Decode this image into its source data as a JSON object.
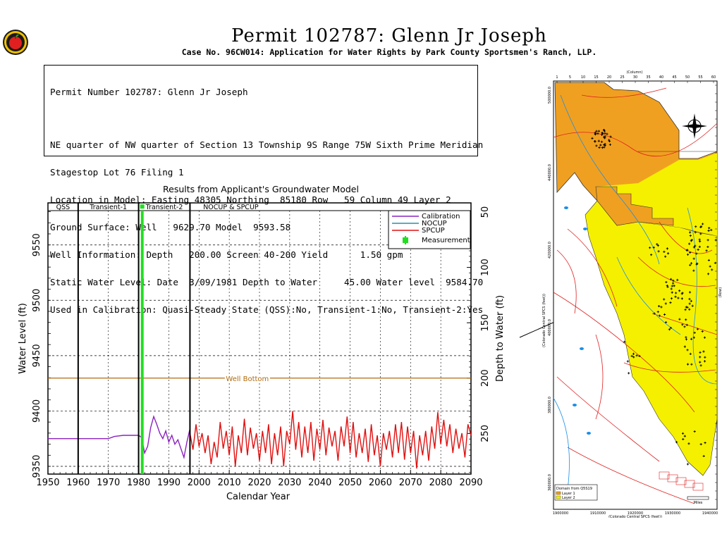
{
  "header": {
    "title": "Permit 102787:   Glenn Jr Joseph",
    "subtitle": "Case No. 96CW014: Application for Water Rights by Park County Sportsmen's Ranch, LLP."
  },
  "info": {
    "lines": [
      "Permit Number 102787: Glenn Jr Joseph",
      "NE quarter of NW quarter of Section 13 Township 9S Range 75W Sixth Prime Meridian",
      "Stagestop Lot 76 Filing 1",
      "Location in Model: Easting 48305 Northing  85180 Row   59 Column 49 Layer 2",
      "Ground Surface: Well   9629.70 Model  9593.58",
      "Well Information: Depth   200.00 Screen 40-200 Yield      1.50 gpm",
      "Static Water Level: Date  3/09/1981 Depth to Water     45.00 Water level  9584.70",
      "Used in Calibration: Quasi-Steady State (QSS):No, Transient-1:No, Transient-2:Yes"
    ]
  },
  "colors": {
    "calibration": "#8b22c0",
    "nocup": "#2a8fa8",
    "spcup": "#e01010",
    "measurement": "#22dd22",
    "well_bottom": "#b06a10",
    "map_orange": "#f0a020",
    "map_yellow": "#f5f000",
    "map_red": "#e02020",
    "map_blue": "#1a8ee8"
  },
  "chart_data": {
    "type": "line",
    "title": "Results from Applicant's Groundwater Model",
    "xlabel": "Calendar Year",
    "ylabel": "Water Level (ft)",
    "y2label": "Depth to Water (ft)",
    "xlim": [
      1950,
      2090
    ],
    "ylim": [
      9343,
      9588
    ],
    "x_ticks": [
      1950,
      1960,
      1970,
      1980,
      1990,
      2000,
      2010,
      2020,
      2030,
      2040,
      2050,
      2060,
      2070,
      2080,
      2090
    ],
    "y_ticks": [
      9350,
      9400,
      9450,
      9500,
      9550
    ],
    "y2_ticks": [
      50,
      100,
      150,
      200,
      250
    ],
    "y2_reference": 9629.7,
    "grid": true,
    "legend_position": "top-right",
    "periods": [
      {
        "label": "QSS",
        "start": 1950,
        "end": 1960
      },
      {
        "label": "Transient-1",
        "start": 1960,
        "end": 1980
      },
      {
        "label": "Transient-2",
        "start": 1980,
        "end": 1997
      },
      {
        "label": "NOCUP  &  SPCUP",
        "start": 1997,
        "end": 2090
      }
    ],
    "period_lines": [
      1960,
      1980,
      1997
    ],
    "well_bottom": {
      "label": "Well Bottom",
      "value": 9429.7
    },
    "measurement": {
      "label": "Measurement",
      "x": 1981.2,
      "y": 9584.7
    },
    "series": [
      {
        "name": "Calibration",
        "points": [
          [
            1950,
            9375
          ],
          [
            1960,
            9375
          ],
          [
            1970,
            9375
          ],
          [
            1972,
            9377
          ],
          [
            1975,
            9378
          ],
          [
            1980,
            9378
          ],
          [
            1981,
            9376
          ],
          [
            1982,
            9362
          ],
          [
            1983,
            9368
          ],
          [
            1984,
            9385
          ],
          [
            1985,
            9395
          ],
          [
            1986,
            9388
          ],
          [
            1987,
            9380
          ],
          [
            1988,
            9375
          ],
          [
            1989,
            9382
          ],
          [
            1990,
            9372
          ],
          [
            1991,
            9378
          ],
          [
            1992,
            9370
          ],
          [
            1993,
            9374
          ],
          [
            1994,
            9366
          ],
          [
            1995,
            9358
          ],
          [
            1996,
            9372
          ],
          [
            1997,
            9384
          ]
        ]
      },
      {
        "name": "NOCUP",
        "points": []
      },
      {
        "name": "SPCUP",
        "points": [
          [
            1997,
            9380
          ],
          [
            1998,
            9365
          ],
          [
            1999,
            9388
          ],
          [
            2000,
            9368
          ],
          [
            2001,
            9380
          ],
          [
            2002,
            9362
          ],
          [
            2003,
            9378
          ],
          [
            2004,
            9352
          ],
          [
            2005,
            9372
          ],
          [
            2006,
            9358
          ],
          [
            2007,
            9390
          ],
          [
            2008,
            9366
          ],
          [
            2009,
            9382
          ],
          [
            2010,
            9360
          ],
          [
            2011,
            9386
          ],
          [
            2012,
            9350
          ],
          [
            2013,
            9378
          ],
          [
            2014,
            9362
          ],
          [
            2015,
            9393
          ],
          [
            2016,
            9360
          ],
          [
            2017,
            9385
          ],
          [
            2018,
            9366
          ],
          [
            2019,
            9380
          ],
          [
            2020,
            9355
          ],
          [
            2021,
            9382
          ],
          [
            2022,
            9362
          ],
          [
            2023,
            9388
          ],
          [
            2024,
            9352
          ],
          [
            2025,
            9380
          ],
          [
            2026,
            9360
          ],
          [
            2027,
            9386
          ],
          [
            2028,
            9350
          ],
          [
            2029,
            9382
          ],
          [
            2030,
            9370
          ],
          [
            2031,
            9400
          ],
          [
            2032,
            9365
          ],
          [
            2033,
            9390
          ],
          [
            2034,
            9358
          ],
          [
            2035,
            9386
          ],
          [
            2036,
            9362
          ],
          [
            2037,
            9390
          ],
          [
            2038,
            9355
          ],
          [
            2039,
            9384
          ],
          [
            2040,
            9365
          ],
          [
            2041,
            9392
          ],
          [
            2042,
            9360
          ],
          [
            2043,
            9385
          ],
          [
            2044,
            9368
          ],
          [
            2045,
            9382
          ],
          [
            2046,
            9355
          ],
          [
            2047,
            9386
          ],
          [
            2048,
            9368
          ],
          [
            2049,
            9395
          ],
          [
            2050,
            9362
          ],
          [
            2051,
            9390
          ],
          [
            2052,
            9358
          ],
          [
            2053,
            9380
          ],
          [
            2054,
            9362
          ],
          [
            2055,
            9384
          ],
          [
            2056,
            9354
          ],
          [
            2057,
            9388
          ],
          [
            2058,
            9360
          ],
          [
            2059,
            9378
          ],
          [
            2060,
            9350
          ],
          [
            2061,
            9380
          ],
          [
            2062,
            9365
          ],
          [
            2063,
            9382
          ],
          [
            2064,
            9358
          ],
          [
            2065,
            9388
          ],
          [
            2066,
            9362
          ],
          [
            2067,
            9390
          ],
          [
            2068,
            9356
          ],
          [
            2069,
            9386
          ],
          [
            2070,
            9362
          ],
          [
            2071,
            9382
          ],
          [
            2072,
            9348
          ],
          [
            2073,
            9378
          ],
          [
            2074,
            9360
          ],
          [
            2075,
            9382
          ],
          [
            2076,
            9355
          ],
          [
            2077,
            9386
          ],
          [
            2078,
            9366
          ],
          [
            2079,
            9399
          ],
          [
            2080,
            9370
          ],
          [
            2081,
            9392
          ],
          [
            2082,
            9368
          ],
          [
            2083,
            9388
          ],
          [
            2084,
            9362
          ],
          [
            2085,
            9384
          ],
          [
            2086,
            9366
          ],
          [
            2087,
            9380
          ],
          [
            2088,
            9358
          ],
          [
            2089,
            9388
          ],
          [
            2090,
            9378
          ]
        ]
      }
    ]
  },
  "map": {
    "top_ticks": [
      "1",
      "5",
      "10",
      "15",
      "20",
      "25",
      "30",
      "35",
      "40",
      "45",
      "50",
      "55",
      "60"
    ],
    "top_label": "(Column)",
    "left_label": "(Colorado Central SPCS (feet))",
    "right_label": "(Row)",
    "left_ticks": [
      "500000.0",
      "440000.0",
      "420000.0",
      "400000.0",
      "380000.0",
      "360000.0"
    ],
    "bottom_ticks": [
      "1900000",
      "1910000",
      "1920000",
      "1930000",
      "1940000"
    ],
    "bottom_label": "(Colorado Central SPCS (feet))",
    "legend_title": "Domain from Q5S19",
    "legend_layer1": "Layer 1",
    "legend_layer2": "Layer 2",
    "scale_label": "Miles"
  }
}
